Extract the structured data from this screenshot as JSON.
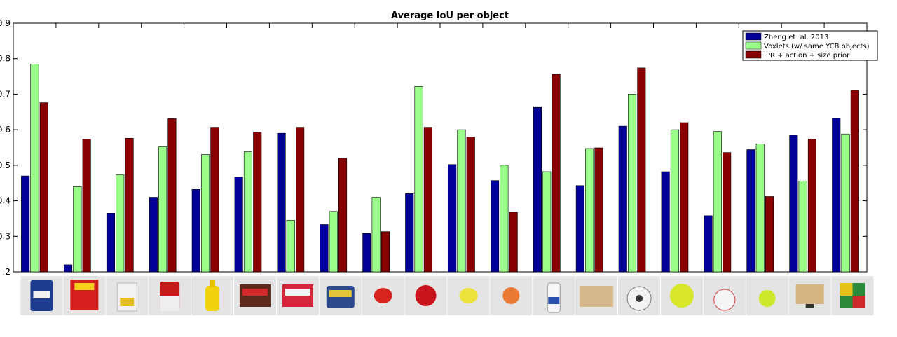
{
  "chart_data": {
    "type": "bar",
    "title": "Average IoU per object",
    "xlabel": "",
    "ylabel": "",
    "ylim": [
      0.2,
      0.9
    ],
    "yticks": [
      0.2,
      0.3,
      0.4,
      0.5,
      0.6,
      0.7,
      0.8,
      0.9
    ],
    "ytick_labels": [
      ".2",
      "0.3",
      "0.4",
      "0.5",
      "0.6",
      "0.7",
      "0.8",
      "0.9"
    ],
    "grid": false,
    "legend_position": "top-right",
    "categories_shown_as": "object photos",
    "object_icons": [
      "coffee-can-icon",
      "cracker-box-icon",
      "sugar-box-icon",
      "soup-can-icon",
      "mustard-bottle-icon",
      "jello-chocolate-box-icon",
      "jello-strawberry-box-icon",
      "spam-can-icon",
      "strawberry-icon",
      "apple-icon",
      "lemon-icon",
      "peach-icon",
      "bleach-bottle-icon",
      "wood-block-icon",
      "mini-soccer-ball-icon",
      "softball-icon",
      "baseball-icon",
      "tennis-ball-icon",
      "foam-brick-icon",
      "rubiks-cube-icon"
    ],
    "series": [
      {
        "name": "Zheng et. al. 2013",
        "color": "#000099",
        "values": [
          0.47,
          0.22,
          0.365,
          0.41,
          0.432,
          0.467,
          0.59,
          0.333,
          0.308,
          0.42,
          0.502,
          0.457,
          0.663,
          0.443,
          0.61,
          0.482,
          0.358,
          0.544,
          0.585,
          0.633
        ]
      },
      {
        "name": "Voxlets (w/ same YCB objects)",
        "color": "#99ff88",
        "values": [
          0.785,
          0.44,
          0.473,
          0.552,
          0.53,
          0.538,
          0.345,
          0.37,
          0.41,
          0.722,
          0.6,
          0.5,
          0.482,
          0.547,
          0.7,
          0.6,
          0.595,
          0.56,
          0.456,
          0.588
        ]
      },
      {
        "name": "IPR + action + size prior",
        "color": "#880000",
        "values": [
          0.676,
          0.574,
          0.576,
          0.631,
          0.607,
          0.593,
          0.607,
          0.52,
          0.313,
          0.607,
          0.58,
          0.368,
          0.756,
          0.549,
          0.774,
          0.62,
          0.536,
          0.412,
          0.574,
          0.711
        ]
      }
    ]
  }
}
